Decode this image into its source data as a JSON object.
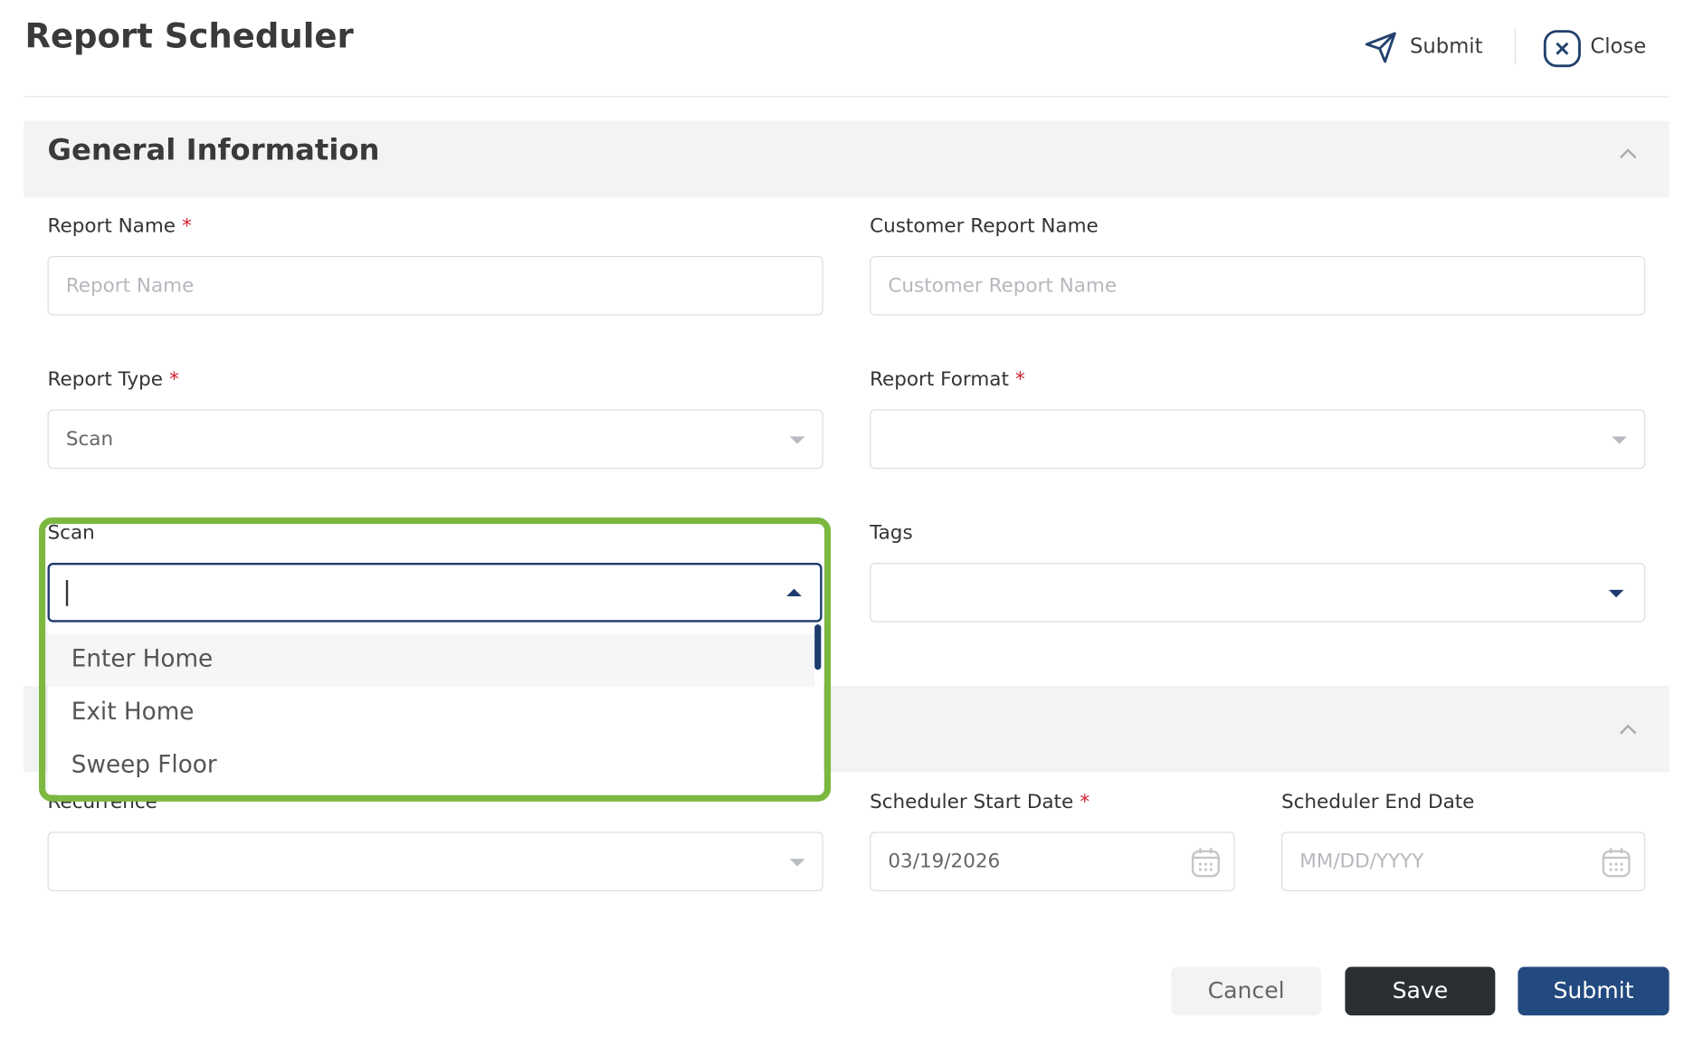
{
  "header": {
    "title": "Report Scheduler",
    "submit": "Submit",
    "close": "Close"
  },
  "sections": [
    {
      "title": "General Information"
    }
  ],
  "fields": {
    "report_name": {
      "label": "Report Name",
      "required_mark": "*",
      "placeholder": "Report Name"
    },
    "customer_report_name": {
      "label": "Customer Report Name",
      "placeholder": "Customer Report Name"
    },
    "report_type": {
      "label": "Report Type",
      "required_mark": "*",
      "value": "Scan"
    },
    "report_format": {
      "label": "Report Format",
      "required_mark": "*"
    },
    "scan": {
      "label": "Scan",
      "options": [
        "Enter Home",
        "Exit Home",
        "Sweep Floor"
      ]
    },
    "tags": {
      "label": "Tags"
    },
    "recurrence": {
      "label": "Recurrence"
    },
    "scheduler_start_date": {
      "label": "Scheduler Start Date",
      "required_mark": "*",
      "value": "03/19/2026"
    },
    "scheduler_end_date": {
      "label": "Scheduler End Date",
      "placeholder": "MM/DD/YYYY"
    }
  },
  "footer": {
    "cancel": "Cancel",
    "save": "Save",
    "submit": "Submit"
  }
}
